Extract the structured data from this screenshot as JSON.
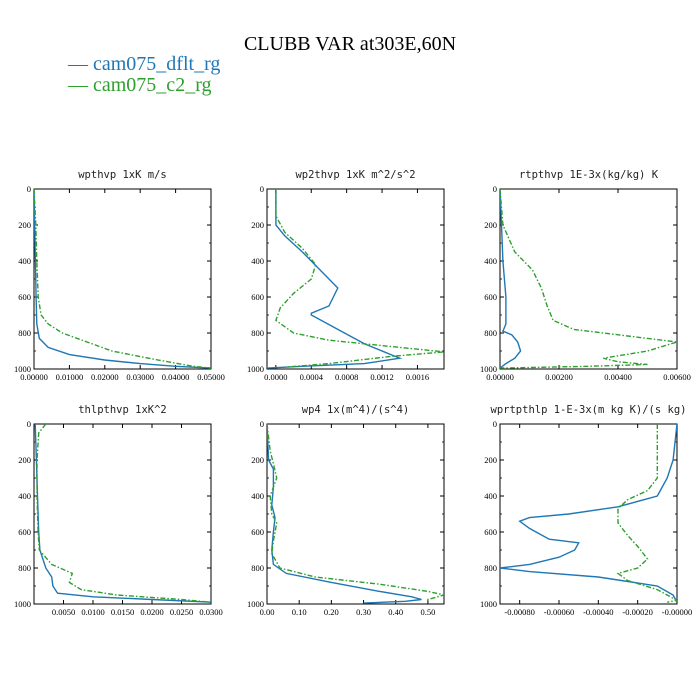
{
  "figure": {
    "title": "CLUBB VAR at303E,60N",
    "legend": [
      {
        "label": "cam075_dflt_rg",
        "color": "#1f77b4",
        "dash": "solid"
      },
      {
        "label": "cam075_c2_rg",
        "color": "#2ca02c",
        "dash": "dashed"
      }
    ]
  },
  "chart_data": [
    {
      "type": "line",
      "title": "wpthvp  1xK m/s",
      "xlim": [
        0,
        0.05
      ],
      "ylim": [
        1000,
        0
      ],
      "xticks": [
        "0.00000",
        "0.01000",
        "0.02000",
        "0.03000",
        "0.04000",
        "0.05000"
      ],
      "xtick_values": [
        0,
        0.01,
        0.02,
        0.03,
        0.04,
        0.05
      ],
      "yticks": [
        "0",
        "200",
        "400",
        "600",
        "800",
        "1000"
      ],
      "ytick_values": [
        0,
        200,
        400,
        600,
        800,
        1000
      ],
      "series": [
        {
          "name": "cam075_dflt_rg",
          "points": [
            [
              0,
              0
            ],
            [
              0.0002,
              200
            ],
            [
              0.0004,
              400
            ],
            [
              0.0006,
              600
            ],
            [
              0.0008,
              750
            ],
            [
              0.0015,
              830
            ],
            [
              0.004,
              880
            ],
            [
              0.01,
              920
            ],
            [
              0.02,
              950
            ],
            [
              0.03,
              970
            ],
            [
              0.04,
              985
            ],
            [
              0.05,
              995
            ]
          ]
        },
        {
          "name": "cam075_c2_rg",
          "points": [
            [
              0,
              0
            ],
            [
              0.0005,
              200
            ],
            [
              0.0008,
              400
            ],
            [
              0.0012,
              600
            ],
            [
              0.002,
              700
            ],
            [
              0.004,
              750
            ],
            [
              0.008,
              800
            ],
            [
              0.015,
              850
            ],
            [
              0.022,
              900
            ],
            [
              0.035,
              950
            ],
            [
              0.045,
              985
            ],
            [
              0.05,
              995
            ]
          ]
        }
      ]
    },
    {
      "type": "line",
      "title": "wp2thvp  1xK m^2/s^2",
      "xlim": [
        -0.0001,
        0.0019
      ],
      "ylim": [
        1000,
        0
      ],
      "xticks": [
        "0.0000",
        "0.0004",
        "0.0008",
        "0.0012",
        "0.0016"
      ],
      "xtick_values": [
        0,
        0.0004,
        0.0008,
        0.0012,
        0.0016
      ],
      "yticks": [
        "0",
        "200",
        "400",
        "600",
        "800",
        "1000"
      ],
      "ytick_values": [
        0,
        200,
        400,
        600,
        800,
        1000
      ],
      "series": [
        {
          "name": "cam075_dflt_rg",
          "points": [
            [
              0,
              0
            ],
            [
              0,
              200
            ],
            [
              0.0001,
              260
            ],
            [
              0.0003,
              350
            ],
            [
              0.0005,
              450
            ],
            [
              0.0007,
              550
            ],
            [
              0.0006,
              650
            ],
            [
              0.0004,
              690
            ],
            [
              0.0004,
              700
            ],
            [
              0.0007,
              780
            ],
            [
              0.001,
              860
            ],
            [
              0.0013,
              920
            ],
            [
              0.0014,
              940
            ],
            [
              0.001,
              970
            ],
            [
              0.0003,
              985
            ],
            [
              -0.0001,
              995
            ]
          ]
        },
        {
          "name": "cam075_c2_rg",
          "points": [
            [
              0,
              0
            ],
            [
              0,
              150
            ],
            [
              0.0001,
              240
            ],
            [
              0.0003,
              330
            ],
            [
              0.00045,
              420
            ],
            [
              0.0004,
              500
            ],
            [
              0.0002,
              580
            ],
            [
              5e-05,
              660
            ],
            [
              0,
              730
            ],
            [
              0.0002,
              800
            ],
            [
              0.0006,
              840
            ],
            [
              0.0012,
              870
            ],
            [
              0.0017,
              895
            ],
            [
              0.0019,
              905
            ],
            [
              0.0013,
              930
            ],
            [
              0.0006,
              970
            ],
            [
              0.0001,
              990
            ]
          ]
        }
      ]
    },
    {
      "type": "line",
      "title": "rtpthvp  1E-3x(kg/kg) K",
      "xlim": [
        0,
        0.006
      ],
      "ylim": [
        1000,
        0
      ],
      "xticks": [
        "0.00000",
        "0.00200",
        "0.00400",
        "0.00600"
      ],
      "xtick_values": [
        0,
        0.002,
        0.004,
        0.006
      ],
      "yticks": [
        "0",
        "200",
        "400",
        "600",
        "800",
        "1000"
      ],
      "ytick_values": [
        0,
        200,
        400,
        600,
        800,
        1000
      ],
      "series": [
        {
          "name": "cam075_dflt_rg",
          "points": [
            [
              0,
              0
            ],
            [
              5e-05,
              200
            ],
            [
              0.0001,
              400
            ],
            [
              0.0002,
              600
            ],
            [
              0.0002,
              750
            ],
            [
              0.0001,
              790
            ],
            [
              0.0004,
              810
            ],
            [
              0.0006,
              850
            ],
            [
              0.0007,
              900
            ],
            [
              0.0005,
              940
            ],
            [
              0.0002,
              970
            ],
            [
              0,
              995
            ]
          ]
        },
        {
          "name": "cam075_c2_rg",
          "points": [
            [
              0,
              0
            ],
            [
              0.0001,
              200
            ],
            [
              0.0005,
              350
            ],
            [
              0.0011,
              450
            ],
            [
              0.0014,
              550
            ],
            [
              0.0016,
              650
            ],
            [
              0.0018,
              730
            ],
            [
              0.0025,
              780
            ],
            [
              0.0045,
              820
            ],
            [
              0.006,
              850
            ],
            [
              0.005,
              900
            ],
            [
              0.0035,
              940
            ],
            [
              0.004,
              960
            ],
            [
              0.005,
              975
            ],
            [
              0.003,
              985
            ],
            [
              0,
              995
            ]
          ]
        }
      ]
    },
    {
      "type": "line",
      "title": "thlpthvp  1xK^2",
      "xlim": [
        0,
        0.03
      ],
      "ylim": [
        1000,
        0
      ],
      "xticks": [
        "0.0050",
        "0.0100",
        "0.0150",
        "0.0200",
        "0.0250",
        "0.0300"
      ],
      "xtick_values": [
        0.005,
        0.01,
        0.015,
        0.02,
        0.025,
        0.03
      ],
      "yticks": [
        "0",
        "200",
        "400",
        "600",
        "800",
        "1000"
      ],
      "ytick_values": [
        0,
        200,
        400,
        600,
        800,
        1000
      ],
      "series": [
        {
          "name": "cam075_dflt_rg",
          "points": [
            [
              0.0002,
              0
            ],
            [
              0.0004,
              200
            ],
            [
              0.0006,
              400
            ],
            [
              0.0008,
              600
            ],
            [
              0.001,
              700
            ],
            [
              0.002,
              800
            ],
            [
              0.003,
              850
            ],
            [
              0.0032,
              900
            ],
            [
              0.004,
              940
            ],
            [
              0.01,
              960
            ],
            [
              0.02,
              975
            ],
            [
              0.03,
              990
            ]
          ]
        },
        {
          "name": "cam075_c2_rg",
          "points": [
            [
              0.002,
              0
            ],
            [
              0.0008,
              50
            ],
            [
              0.0005,
              200
            ],
            [
              0.0005,
              400
            ],
            [
              0.0007,
              600
            ],
            [
              0.0009,
              700
            ],
            [
              0.003,
              780
            ],
            [
              0.0065,
              830
            ],
            [
              0.006,
              880
            ],
            [
              0.008,
              920
            ],
            [
              0.014,
              950
            ],
            [
              0.025,
              975
            ],
            [
              0.03,
              990
            ]
          ]
        }
      ]
    },
    {
      "type": "line",
      "title": "wp4  1x(m^4)/(s^4)",
      "xlim": [
        0,
        0.55
      ],
      "ylim": [
        1000,
        0
      ],
      "xticks": [
        "0.00",
        "0.10",
        "0.20",
        "0.30",
        "0.40",
        "0.50"
      ],
      "xtick_values": [
        0,
        0.1,
        0.2,
        0.3,
        0.4,
        0.5
      ],
      "yticks": [
        "0",
        "200",
        "400",
        "600",
        "800",
        "1000"
      ],
      "ytick_values": [
        0,
        200,
        400,
        600,
        800,
        1000
      ],
      "series": [
        {
          "name": "cam075_dflt_rg",
          "points": [
            [
              0,
              0
            ],
            [
              0.005,
              200
            ],
            [
              0.02,
              250
            ],
            [
              0.02,
              350
            ],
            [
              0.015,
              450
            ],
            [
              0.025,
              520
            ],
            [
              0.02,
              600
            ],
            [
              0.015,
              700
            ],
            [
              0.02,
              780
            ],
            [
              0.06,
              830
            ],
            [
              0.2,
              880
            ],
            [
              0.35,
              930
            ],
            [
              0.45,
              960
            ],
            [
              0.48,
              975
            ],
            [
              0.43,
              985
            ],
            [
              0.3,
              995
            ]
          ]
        },
        {
          "name": "cam075_c2_rg",
          "points": [
            [
              0,
              0
            ],
            [
              0.01,
              150
            ],
            [
              0.02,
              220
            ],
            [
              0.03,
              300
            ],
            [
              0.01,
              400
            ],
            [
              0.015,
              500
            ],
            [
              0.03,
              550
            ],
            [
              0.02,
              650
            ],
            [
              0.015,
              720
            ],
            [
              0.04,
              800
            ],
            [
              0.15,
              850
            ],
            [
              0.35,
              890
            ],
            [
              0.5,
              930
            ],
            [
              0.55,
              950
            ],
            [
              0.5,
              975
            ],
            [
              0.5,
              990
            ]
          ]
        }
      ]
    },
    {
      "type": "line",
      "title": "wprtpthlp  1-E-3x(m kg K)/(s kg)",
      "xlim": [
        -0.0009,
        0
      ],
      "ylim": [
        1000,
        0
      ],
      "xticks": [
        "-0.00080",
        "-0.00060",
        "-0.00040",
        "-0.00020",
        "-0.00000"
      ],
      "xtick_values": [
        -0.0008,
        -0.0006,
        -0.0004,
        -0.0002,
        0
      ],
      "yticks": [
        "0",
        "200",
        "400",
        "600",
        "800",
        "1000"
      ],
      "ytick_values": [
        0,
        200,
        400,
        600,
        800,
        1000
      ],
      "series": [
        {
          "name": "cam075_dflt_rg",
          "points": [
            [
              0,
              0
            ],
            [
              -2e-05,
              200
            ],
            [
              -5e-05,
              300
            ],
            [
              -0.0001,
              400
            ],
            [
              -0.0003,
              460
            ],
            [
              -0.00055,
              500
            ],
            [
              -0.00075,
              520
            ],
            [
              -0.0008,
              540
            ],
            [
              -0.00075,
              580
            ],
            [
              -0.00065,
              640
            ],
            [
              -0.0005,
              660
            ],
            [
              -0.00052,
              700
            ],
            [
              -0.0006,
              740
            ],
            [
              -0.00075,
              780
            ],
            [
              -0.0009,
              800
            ],
            [
              -0.00075,
              820
            ],
            [
              -0.0004,
              850
            ],
            [
              -0.0001,
              900
            ],
            [
              -2e-05,
              950
            ],
            [
              0,
              990
            ]
          ]
        },
        {
          "name": "cam075_c2_rg",
          "points": [
            [
              -0.0001,
              0
            ],
            [
              -0.0001,
              200
            ],
            [
              -0.0001,
              300
            ],
            [
              -0.00015,
              370
            ],
            [
              -0.00025,
              420
            ],
            [
              -0.0003,
              470
            ],
            [
              -0.0003,
              550
            ],
            [
              -0.00025,
              620
            ],
            [
              -0.0002,
              680
            ],
            [
              -0.00015,
              750
            ],
            [
              -0.0002,
              800
            ],
            [
              -0.0003,
              830
            ],
            [
              -0.00025,
              870
            ],
            [
              -0.0001,
              920
            ],
            [
              0,
              980
            ],
            [
              -5e-05,
              990
            ]
          ]
        }
      ]
    }
  ]
}
